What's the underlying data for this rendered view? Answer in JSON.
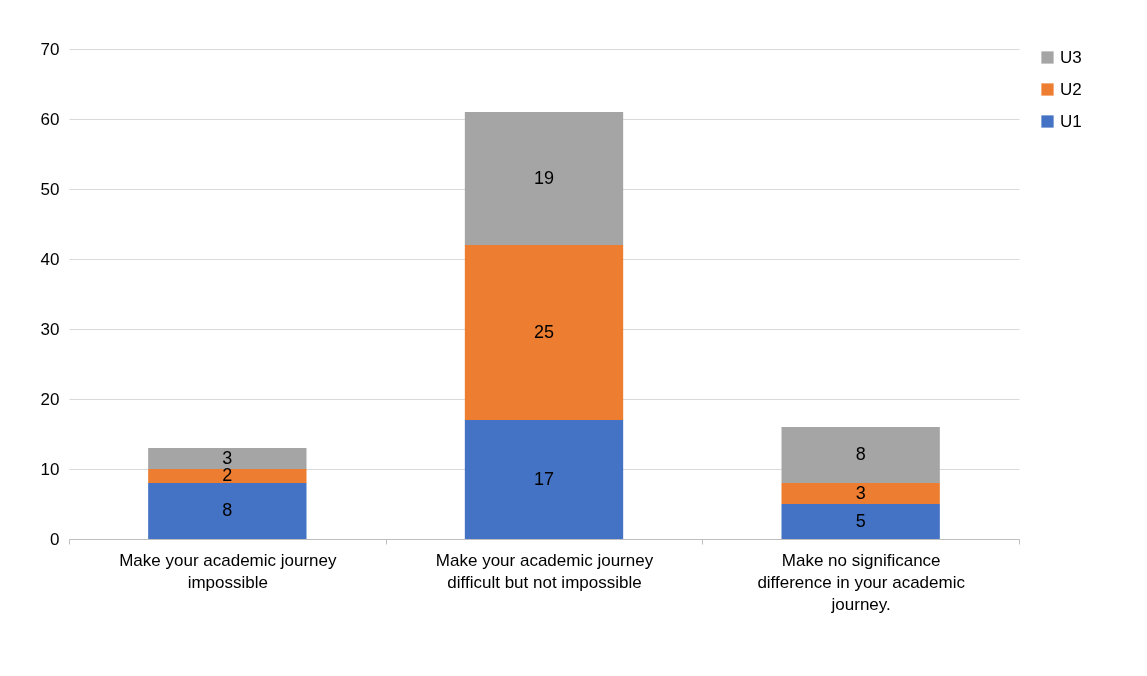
{
  "chart_data": {
    "type": "bar",
    "stacked": true,
    "categories": [
      "Make your academic journey impossible",
      "Make your academic journey difficult but not impossible",
      "Make no significance difference in your academic journey."
    ],
    "series": [
      {
        "name": "U1",
        "color": "#4472c4",
        "values": [
          8,
          17,
          5
        ]
      },
      {
        "name": "U2",
        "color": "#ed7d31",
        "values": [
          2,
          25,
          3
        ]
      },
      {
        "name": "U3",
        "color": "#a5a5a5",
        "values": [
          3,
          19,
          8
        ]
      }
    ],
    "ylim": [
      0,
      70
    ],
    "yticks": [
      0,
      10,
      20,
      30,
      40,
      50,
      60,
      70
    ],
    "grid": "y",
    "legend": "right",
    "data_labels": true
  }
}
